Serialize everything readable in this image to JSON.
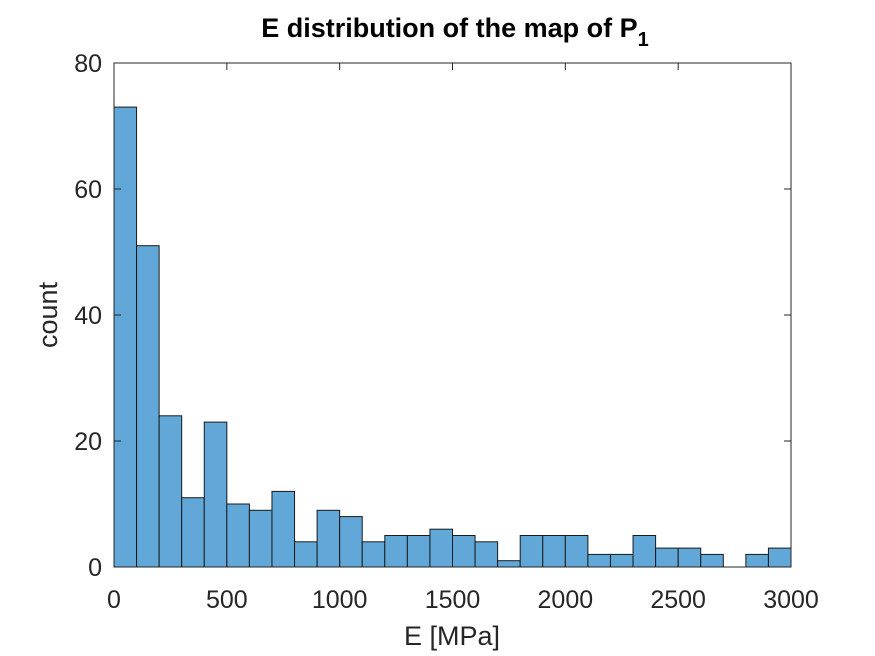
{
  "chart_data": {
    "type": "bar",
    "title": "E distribution of the map of P",
    "title_subscript": "1",
    "xlabel": "E [MPa]",
    "ylabel": "count",
    "xlim": [
      0,
      3000
    ],
    "ylim": [
      0,
      80
    ],
    "xticks": [
      0,
      500,
      1000,
      1500,
      2000,
      2500,
      3000
    ],
    "yticks": [
      0,
      20,
      40,
      60,
      80
    ],
    "bin_width": 100,
    "bin_edges_start": 0,
    "values": [
      73,
      51,
      24,
      11,
      23,
      10,
      9,
      12,
      4,
      9,
      8,
      4,
      5,
      5,
      6,
      5,
      4,
      1,
      5,
      5,
      5,
      2,
      2,
      5,
      3,
      3,
      2,
      0,
      2,
      3
    ],
    "grid": false,
    "legend": "none",
    "bar_color": "#61a7d8"
  }
}
